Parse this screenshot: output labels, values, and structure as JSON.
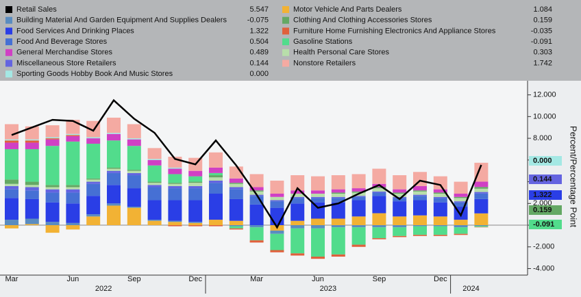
{
  "chart_data": {
    "type": "stacked-bar-line",
    "y_axis_label": "Percent/Percentage Point",
    "categories": [
      "Mar",
      null,
      null,
      "Jun",
      null,
      null,
      "Sep",
      null,
      null,
      "Dec",
      null,
      null,
      "Mar",
      null,
      null,
      "Jun",
      null,
      null,
      "Sep",
      null,
      null,
      "Dec",
      null,
      null
    ],
    "x_groups": [
      {
        "label": "2022",
        "start": 0,
        "end": 9
      },
      {
        "label": "2023",
        "start": 10,
        "end": 21
      },
      {
        "label": "2024",
        "start": 22,
        "end": 23
      }
    ],
    "ylim": [
      -4.6,
      13.3
    ],
    "yticks": [
      {
        "value": -4,
        "label": "-4.000"
      },
      {
        "value": -2,
        "label": "-2.000"
      },
      {
        "value": 0,
        "label": "0.000"
      },
      {
        "value": 2,
        "label": "2.000"
      },
      {
        "value": 4,
        "label": "4.000"
      },
      {
        "value": 6,
        "label": "6.000"
      },
      {
        "value": 8,
        "label": "8.000"
      },
      {
        "value": 10,
        "label": "10.000"
      },
      {
        "value": 12,
        "label": "12.000"
      }
    ],
    "series": [
      {
        "name": "Retail Sales",
        "kind": "line",
        "color": "#000000",
        "latest_label": "5.547",
        "values": [
          8.3,
          9.0,
          9.7,
          9.6,
          8.7,
          11.5,
          9.8,
          8.5,
          6.1,
          5.6,
          7.8,
          5.5,
          2.8,
          -0.2,
          3.4,
          1.6,
          2.0,
          2.9,
          3.7,
          2.4,
          4.1,
          3.7,
          0.9,
          5.547
        ]
      },
      {
        "name": "Building Material And Garden Equipment And Supplies Dealers",
        "color": "#5a8cc0",
        "latest_label": "-0.075",
        "values": [
          0.5,
          0.5,
          0.3,
          0.2,
          0.2,
          0.2,
          0.1,
          0.1,
          0.1,
          0.1,
          0.0,
          -0.1,
          -0.2,
          -0.3,
          -0.3,
          -0.3,
          -0.2,
          -0.2,
          -0.2,
          -0.2,
          -0.1,
          -0.1,
          -0.2,
          -0.075
        ]
      },
      {
        "name": "Food Services And Drinking Places",
        "color": "#2a3ee6",
        "latest_label": "1.322",
        "values": [
          2.0,
          1.8,
          1.8,
          1.8,
          1.7,
          1.7,
          1.7,
          1.8,
          1.9,
          2.0,
          2.4,
          2.0,
          1.9,
          1.6,
          1.6,
          1.5,
          1.5,
          1.5,
          1.6,
          1.4,
          1.4,
          1.3,
          1.2,
          1.322
        ]
      },
      {
        "name": "Food And Beverage Stores",
        "color": "#4670d4",
        "latest_label": "0.504",
        "values": [
          0.8,
          0.8,
          0.9,
          1.0,
          1.1,
          1.1,
          1.2,
          1.2,
          1.1,
          1.1,
          1.0,
          0.9,
          0.8,
          0.6,
          0.5,
          0.4,
          0.4,
          0.3,
          0.3,
          0.3,
          0.4,
          0.4,
          0.4,
          0.504
        ]
      },
      {
        "name": "General Merchandise Stores",
        "color": "#d040c4",
        "latest_label": "0.489",
        "values": [
          0.6,
          0.6,
          0.6,
          0.5,
          0.5,
          0.6,
          0.6,
          0.5,
          0.5,
          0.5,
          0.5,
          0.4,
          0.3,
          0.3,
          0.3,
          0.3,
          0.3,
          0.3,
          0.3,
          0.3,
          0.4,
          0.3,
          0.3,
          0.489
        ]
      },
      {
        "name": "Miscellaneous Store Retailers",
        "color": "#6464e0",
        "latest_label": "0.144",
        "values": [
          0.3,
          0.3,
          0.3,
          0.3,
          0.2,
          0.2,
          0.2,
          0.2,
          0.2,
          0.2,
          0.2,
          0.2,
          0.1,
          0.1,
          0.1,
          0.1,
          0.1,
          0.1,
          0.1,
          0.1,
          0.1,
          0.1,
          0.1,
          0.144
        ]
      },
      {
        "name": "Sporting Goods Hobby Book And Music Stores",
        "color": "#a4e8e4",
        "latest_label": "0.000",
        "values": [
          0.1,
          0.1,
          0.1,
          0.1,
          0.1,
          0.1,
          0.1,
          0.1,
          0.1,
          0.0,
          0.0,
          0.0,
          0.0,
          0.0,
          0.0,
          0.0,
          0.0,
          0.0,
          0.0,
          0.0,
          0.0,
          0.0,
          0.0,
          0.0
        ]
      },
      {
        "name": "Motor Vehicle And Parts Dealers",
        "color": "#f2b234",
        "latest_label": "1.084",
        "values": [
          -0.3,
          0.1,
          -0.7,
          -0.4,
          0.8,
          1.8,
          1.6,
          0.4,
          0.3,
          0.2,
          0.5,
          0.4,
          0.0,
          -0.5,
          0.4,
          0.6,
          0.6,
          0.8,
          1.1,
          0.8,
          0.9,
          0.8,
          0.5,
          1.084
        ]
      },
      {
        "name": "Clothing And Clothing Accessories Stores",
        "color": "#64a864",
        "latest_label": "0.159",
        "values": [
          0.4,
          0.3,
          0.2,
          0.2,
          0.1,
          0.1,
          0.1,
          0.1,
          0.1,
          0.1,
          0.2,
          0.1,
          0.1,
          0.0,
          0.0,
          0.0,
          0.1,
          0.1,
          0.1,
          0.1,
          0.1,
          0.1,
          0.1,
          0.159
        ]
      },
      {
        "name": "Furniture Home Furnishing Electronics And Appliance Stores",
        "color": "#e0603c",
        "latest_label": "-0.035",
        "values": [
          0.2,
          0.2,
          0.1,
          0.1,
          0.0,
          0.0,
          0.0,
          0.0,
          -0.1,
          -0.1,
          -0.1,
          -0.1,
          -0.2,
          -0.2,
          -0.2,
          -0.2,
          -0.2,
          -0.2,
          -0.1,
          -0.1,
          -0.1,
          -0.1,
          -0.1,
          -0.035
        ]
      },
      {
        "name": "Gasoline Stations",
        "color": "#52dc8c",
        "latest_label": "-0.091",
        "values": [
          2.8,
          3.0,
          3.6,
          4.0,
          3.2,
          2.5,
          2.2,
          1.5,
          0.8,
          0.5,
          0.2,
          -0.2,
          -1.2,
          -1.5,
          -2.3,
          -2.6,
          -2.5,
          -1.6,
          -1.0,
          -0.8,
          -0.8,
          -0.8,
          -0.6,
          -0.091
        ]
      },
      {
        "name": "Health Personal Care Stores",
        "color": "#b8deaa",
        "latest_label": "0.303",
        "values": [
          0.2,
          0.2,
          0.2,
          0.2,
          0.2,
          0.2,
          0.2,
          0.2,
          0.2,
          0.3,
          0.3,
          0.3,
          0.3,
          0.3,
          0.3,
          0.3,
          0.3,
          0.3,
          0.3,
          0.3,
          0.3,
          0.3,
          0.3,
          0.303
        ]
      },
      {
        "name": "Nonstore Retailers",
        "color": "#f4aaa2",
        "latest_label": "1.742",
        "values": [
          1.4,
          1.2,
          1.1,
          1.3,
          1.5,
          1.4,
          1.3,
          1.0,
          1.0,
          1.2,
          1.4,
          1.1,
          1.2,
          1.2,
          1.4,
          1.3,
          1.3,
          1.3,
          1.4,
          1.3,
          1.3,
          1.2,
          1.1,
          1.742
        ]
      }
    ],
    "right_tags": [
      6,
      5,
      2,
      8,
      10
    ]
  }
}
